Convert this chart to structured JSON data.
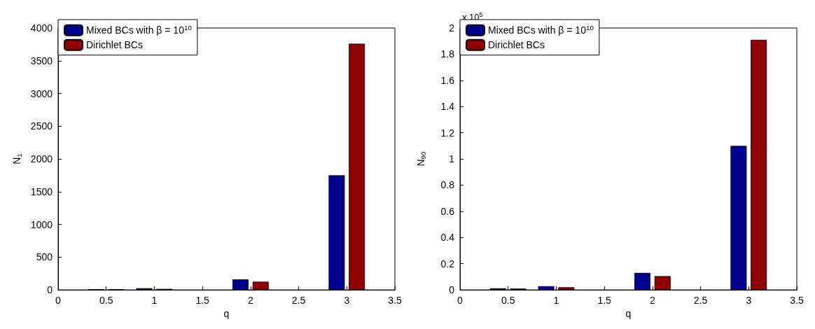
{
  "chart_data": [
    {
      "type": "bar",
      "xlabel": "q",
      "ylabel": "N$_{1}$",
      "x": [
        0.5,
        1,
        2,
        3
      ],
      "xlim": [
        0,
        3.5
      ],
      "xticks": [
        0,
        0.5,
        1,
        1.5,
        2,
        2.5,
        3,
        3.5
      ],
      "ylim": [
        0,
        4000
      ],
      "yticks": [
        0,
        500,
        1000,
        1500,
        2000,
        2500,
        3000,
        3500,
        4000
      ],
      "grid": false,
      "legend": "top left",
      "series": [
        {
          "name": "Mixed BCs with β = 10$^{10}$",
          "color": "#00008f",
          "values": [
            8,
            25,
            160,
            1750
          ]
        },
        {
          "name": "Dirichlet BCs",
          "color": "#8f0000",
          "values": [
            6,
            15,
            125,
            3760
          ]
        }
      ]
    },
    {
      "type": "bar",
      "xlabel": "q",
      "ylabel": "N$_{90}$",
      "annotations": [
        "x 10$^{5}$"
      ],
      "x": [
        0.5,
        1,
        2,
        3
      ],
      "xlim": [
        0,
        3.5
      ],
      "xticks": [
        0,
        0.5,
        1,
        1.5,
        2,
        2.5,
        3,
        3.5
      ],
      "ylim": [
        0,
        2
      ],
      "yticks": [
        0,
        0.2,
        0.4,
        0.6,
        0.8,
        1,
        1.2,
        1.4,
        1.6,
        1.8,
        2
      ],
      "grid": false,
      "legend": "top left",
      "series": [
        {
          "name": "Mixed BCs with β = 10$^{10}$",
          "color": "#00008f",
          "values": [
            0.012,
            0.028,
            0.13,
            1.1
          ]
        },
        {
          "name": "Dirichlet BCs",
          "color": "#8f0000",
          "values": [
            0.01,
            0.02,
            0.105,
            1.91
          ]
        }
      ]
    }
  ]
}
